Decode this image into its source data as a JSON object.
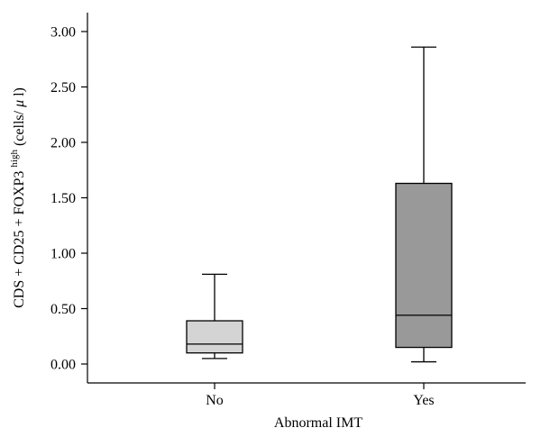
{
  "chart_data": {
    "type": "boxplot",
    "xlabel": "Abnormal IMT",
    "ylabel": {
      "base": "CDS + CD25 + FOXP3",
      "superscript": "high",
      "unit_pre": " (cells/",
      "unit_mu": "μ",
      "unit_post": "l)"
    },
    "ylim": [
      0,
      3.0
    ],
    "yticks": [
      {
        "value": 0.0,
        "label": "0.00"
      },
      {
        "value": 0.5,
        "label": "0.50"
      },
      {
        "value": 1.0,
        "label": "1.00"
      },
      {
        "value": 1.5,
        "label": "1.50"
      },
      {
        "value": 2.0,
        "label": "2.00"
      },
      {
        "value": 2.5,
        "label": "2.50"
      },
      {
        "value": 3.0,
        "label": "3.00"
      }
    ],
    "grid": false,
    "categories": [
      "No",
      "Yes"
    ],
    "boxes": [
      {
        "category": "No",
        "min": 0.05,
        "q1": 0.1,
        "median": 0.18,
        "q3": 0.39,
        "max": 0.81,
        "color": "#d4d4d4"
      },
      {
        "category": "Yes",
        "min": 0.02,
        "q1": 0.15,
        "median": 0.44,
        "q3": 1.63,
        "max": 2.86,
        "color": "#999999"
      }
    ]
  }
}
